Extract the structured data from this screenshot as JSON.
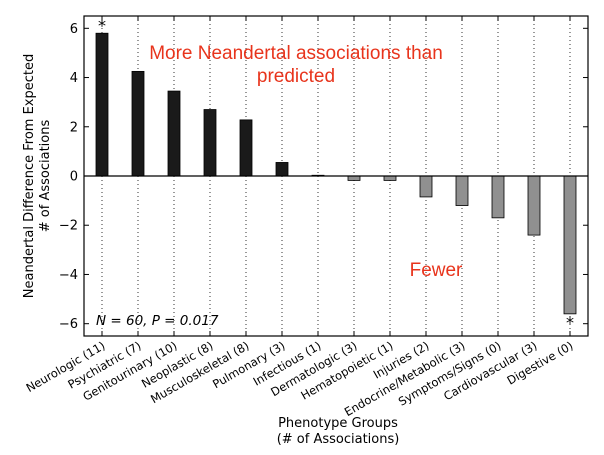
{
  "chart_data": {
    "type": "bar",
    "xlabel": "Phenotype Groups",
    "xlabel_sub": "(# of Associations)",
    "ylabel": "Neandertal Difference From Expected",
    "ylabel_sub": "# of Associations",
    "ylim": [
      -6.5,
      6.5
    ],
    "yticks": [
      -6,
      -4,
      -2,
      0,
      2,
      4,
      6
    ],
    "ytick_labels": [
      "−6",
      "−4",
      "−2",
      "0",
      "2",
      "4",
      "6"
    ],
    "grid": "vertical dotted at categories",
    "categories": [
      "Neurologic (11)",
      "Psychiatric (7)",
      "Genitourinary (10)",
      "Neoplastic (8)",
      "Musculoskeletal (8)",
      "Pulmonary (3)",
      "Infectious (1)",
      "Dermatologic (3)",
      "Hematopoietic (1)",
      "Injuries (2)",
      "Endocrine/Metabolic (3)",
      "Symptoms/Signs (0)",
      "Cardiovascular (3)",
      "Digestive (0)"
    ],
    "values": [
      5.8,
      4.25,
      3.45,
      2.7,
      2.28,
      0.55,
      0.03,
      -0.18,
      -0.18,
      -0.85,
      -1.2,
      -1.7,
      -2.4,
      -5.6
    ],
    "bar_colors": {
      "positive": "#1a1a1a",
      "negative": "#909090"
    },
    "annotations": {
      "more": [
        "More Neandertal associations than",
        "predicted"
      ],
      "fewer": "Fewer",
      "stat": "N = 60, P = 0.017",
      "star": "*"
    },
    "significant_indices": [
      0,
      13
    ],
    "annotation_color": "#e8341c"
  }
}
